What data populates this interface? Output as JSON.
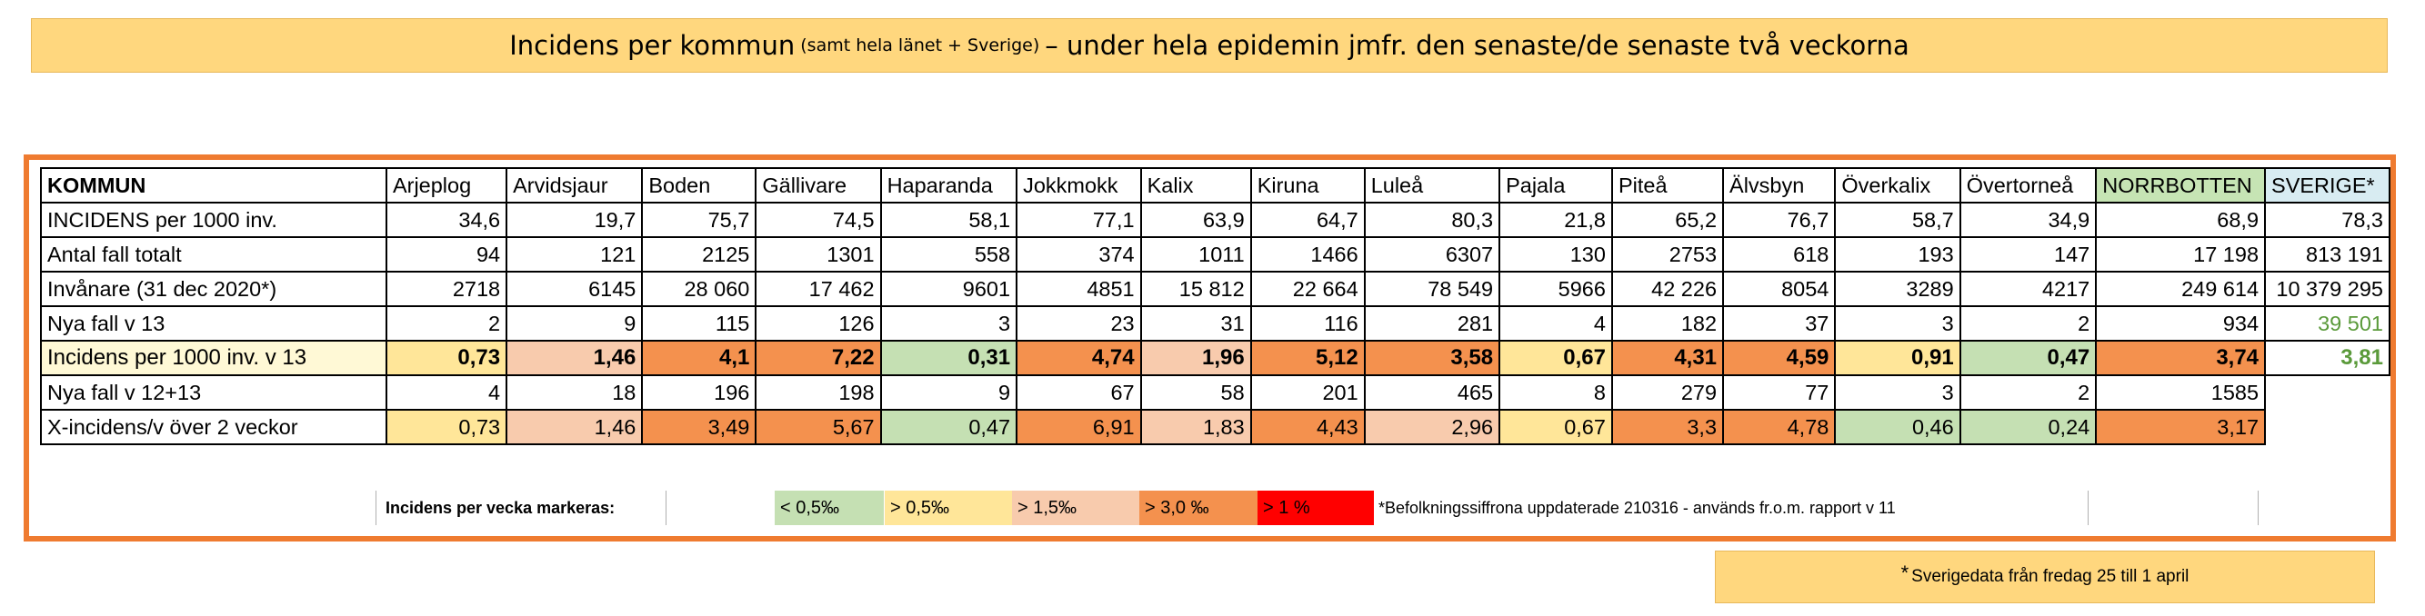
{
  "title": {
    "main_part1": "Incidens per kommun",
    "small_part": "(samt hela länet + Sverige)",
    "main_part2": "– under hela epidemin jmfr. den senaste/de senaste två veckorna"
  },
  "table": {
    "header": [
      "KOMMUN",
      "Arjeplog",
      "Arvidsjaur",
      "Boden",
      "Gällivare",
      "Haparanda",
      "Jokkmokk",
      "Kalix",
      "Kiruna",
      "Luleå",
      "Pajala",
      "Piteå",
      "Älvsbyn",
      "Överkalix",
      "Övertorneå",
      "NORRBOTTEN",
      "SVERIGE*"
    ],
    "rows": [
      {
        "label": "INCIDENS per 1000 inv.",
        "values": [
          "34,6",
          "19,7",
          "75,7",
          "74,5",
          "58,1",
          "77,1",
          "63,9",
          "64,7",
          "80,3",
          "21,8",
          "65,2",
          "76,7",
          "58,7",
          "34,9",
          "68,9",
          "78,3"
        ]
      },
      {
        "label": "Antal fall totalt",
        "values": [
          "94",
          "121",
          "2125",
          "1301",
          "558",
          "374",
          "1011",
          "1466",
          "6307",
          "130",
          "2753",
          "618",
          "193",
          "147",
          "17 198",
          "813 191"
        ]
      },
      {
        "label": "Invånare (31 dec 2020*)",
        "values": [
          "2718",
          "6145",
          "28 060",
          "17 462",
          "9601",
          "4851",
          "15 812",
          "22 664",
          "78 549",
          "5966",
          "42 226",
          "8054",
          "3289",
          "4217",
          "249 614",
          "10 379 295"
        ]
      },
      {
        "label": "Nya fall v 13",
        "values": [
          "2",
          "9",
          "115",
          "126",
          "3",
          "23",
          "31",
          "116",
          "281",
          "4",
          "182",
          "37",
          "3",
          "2",
          "934",
          "39 501"
        ]
      },
      {
        "label": "Incidens per 1000 inv. v 13",
        "values": [
          "0,73",
          "1,46",
          "4,1",
          "7,22",
          "0,31",
          "4,74",
          "1,96",
          "5,12",
          "3,58",
          "0,67",
          "4,31",
          "4,59",
          "0,91",
          "0,47",
          "3,74",
          "3,81"
        ]
      },
      {
        "label": "Nya fall v 12+13",
        "values": [
          "4",
          "18",
          "196",
          "198",
          "9",
          "67",
          "58",
          "201",
          "465",
          "8",
          "279",
          "77",
          "3",
          "2",
          "1585",
          ""
        ]
      },
      {
        "label": "X-incidens/v över 2 veckor",
        "values": [
          "0,73",
          "1,46",
          "3,49",
          "5,67",
          "0,47",
          "6,91",
          "1,83",
          "4,43",
          "2,96",
          "0,67",
          "3,3",
          "4,78",
          "0,46",
          "0,24",
          "3,17",
          ""
        ]
      }
    ]
  },
  "legend": {
    "label": "Incidens per vecka markeras:",
    "items": [
      {
        "text": "< 0,5‰",
        "color": "#c5e0b3"
      },
      {
        "text": "> 0,5‰",
        "color": "#ffe699"
      },
      {
        "text": "> 1,5‰",
        "color": "#f8cbad"
      },
      {
        "text": "> 3,0 ‰",
        "color": "#f4914e"
      },
      {
        "text": "> 1 %",
        "color": "#ff0000"
      }
    ],
    "footnote": "*Befolkningssiffrona uppdaterade 210316 - används fr.o.m. rapport v 11"
  },
  "note": {
    "star": "*",
    "text": "Sverigedata från fredag 25 till 1 april"
  },
  "colors": {
    "green": "#c5e0b3",
    "yellow": "#ffe699",
    "lightorange": "#f8cbad",
    "orange": "#f4914e",
    "red": "#ff0000",
    "norrbotten_header": "#c6e4b4",
    "sverige_header": "#d8ecf2",
    "sverige_text_green": "#5a9a3a"
  }
}
